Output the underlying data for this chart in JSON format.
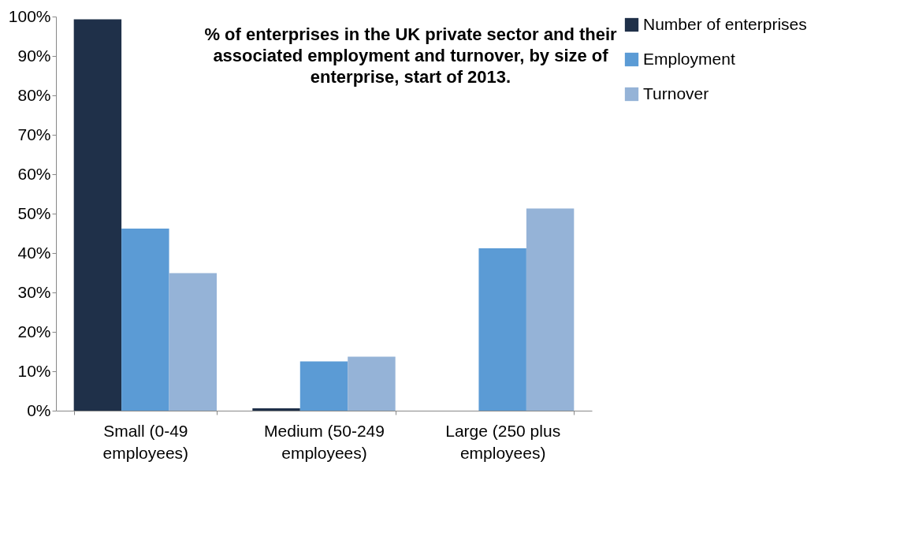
{
  "chart_data": {
    "type": "bar",
    "title": "% of enterprises in the UK private sector and their associated employment and turnover, by size of enterprise, start of 2013.",
    "categories": [
      "Small (0-49 employees)",
      "Medium (50-249 employees)",
      "Large (250 plus employees)"
    ],
    "series": [
      {
        "name": "Number of enterprises",
        "color": "#1f3049",
        "values": [
          99.3,
          0.6,
          null
        ]
      },
      {
        "name": "Employment",
        "color": "#5b9bd5",
        "values": [
          46.2,
          12.5,
          41.2
        ]
      },
      {
        "name": "Turnover",
        "color": "#95b3d7",
        "values": [
          34.9,
          13.7,
          51.3
        ]
      }
    ],
    "ylim": [
      0,
      100
    ],
    "yticks": [
      {
        "value": 0,
        "label": "0%"
      },
      {
        "value": 10,
        "label": "10%"
      },
      {
        "value": 20,
        "label": "20%"
      },
      {
        "value": 30,
        "label": "30%"
      },
      {
        "value": 40,
        "label": "40%"
      },
      {
        "value": 50,
        "label": "50%"
      },
      {
        "value": 60,
        "label": "60%"
      },
      {
        "value": 70,
        "label": "70%"
      },
      {
        "value": 80,
        "label": "80%"
      },
      {
        "value": 90,
        "label": "90%"
      },
      {
        "value": 100,
        "label": "100%"
      }
    ],
    "grid": false,
    "legend": "right"
  }
}
